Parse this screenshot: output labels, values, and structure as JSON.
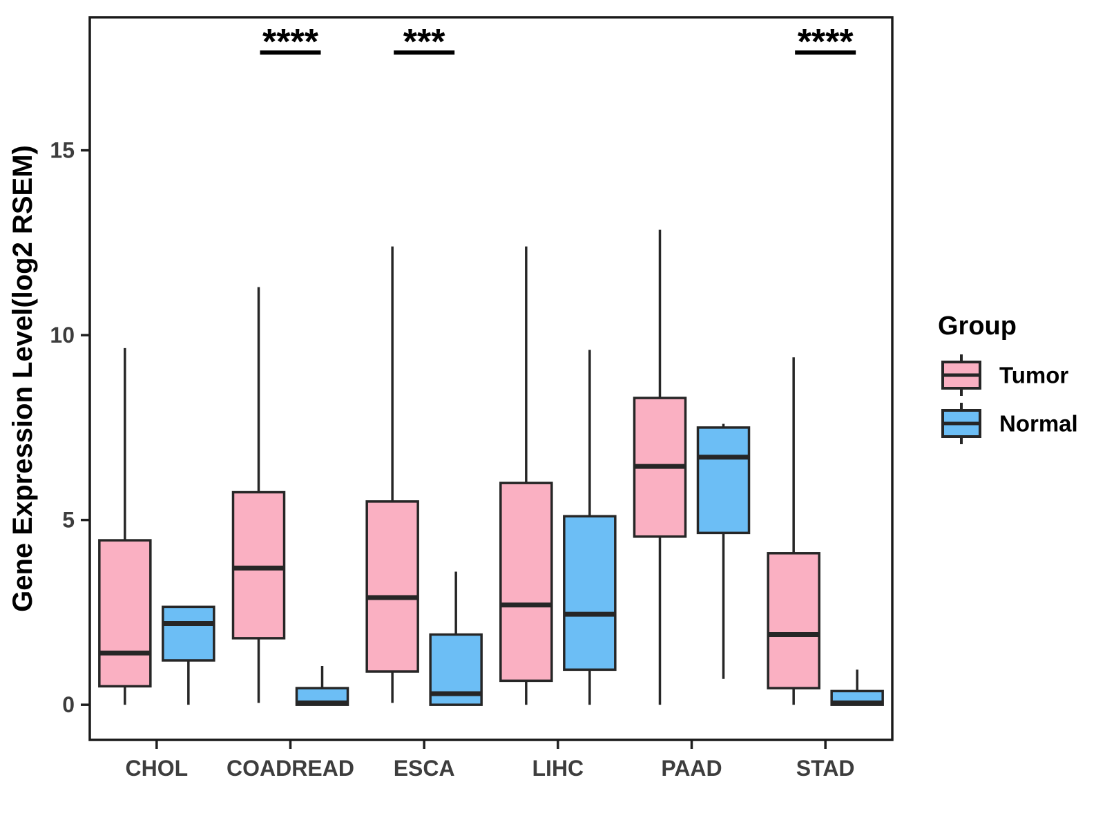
{
  "chart_data": {
    "type": "boxplot",
    "title": "",
    "xlabel": "",
    "ylabel": "Gene Expression Level(log2 RSEM)",
    "categories": [
      "CHOL",
      "COADREAD",
      "ESCA",
      "LIHC",
      "PAAD",
      "STAD"
    ],
    "y_ticks": [
      0,
      5,
      10,
      15
    ],
    "ylim": [
      -0.95,
      18.6
    ],
    "grid": "off",
    "panel_background": "#ffffff",
    "series": [
      {
        "name": "Tumor",
        "color": "#FAB0C2",
        "data": [
          {
            "category": "CHOL",
            "min": 0,
            "q1": 0.5,
            "median": 1.4,
            "q3": 4.45,
            "max": 9.65
          },
          {
            "category": "COADREAD",
            "min": 0.05,
            "q1": 1.8,
            "median": 3.7,
            "q3": 5.75,
            "max": 11.3
          },
          {
            "category": "ESCA",
            "min": 0.05,
            "q1": 0.9,
            "median": 2.9,
            "q3": 5.5,
            "max": 12.4
          },
          {
            "category": "LIHC",
            "min": 0,
            "q1": 0.65,
            "median": 2.7,
            "q3": 6.0,
            "max": 12.4
          },
          {
            "category": "PAAD",
            "min": 0,
            "q1": 4.55,
            "median": 6.45,
            "q3": 8.3,
            "max": 12.85
          },
          {
            "category": "STAD",
            "min": 0,
            "q1": 0.45,
            "median": 1.9,
            "q3": 4.1,
            "max": 9.4
          }
        ]
      },
      {
        "name": "Normal",
        "color": "#6CBEF5",
        "data": [
          {
            "category": "CHOL",
            "min": 0,
            "q1": 1.2,
            "median": 2.2,
            "q3": 2.65,
            "max": 2.65
          },
          {
            "category": "COADREAD",
            "min": 0,
            "q1": 0,
            "median": 0.05,
            "q3": 0.45,
            "max": 1.05
          },
          {
            "category": "ESCA",
            "min": 0,
            "q1": 0,
            "median": 0.3,
            "q3": 1.9,
            "max": 3.6
          },
          {
            "category": "LIHC",
            "min": 0,
            "q1": 0.95,
            "median": 2.45,
            "q3": 5.1,
            "max": 9.6
          },
          {
            "category": "PAAD",
            "min": 0.7,
            "q1": 4.65,
            "median": 6.7,
            "q3": 7.5,
            "max": 7.6
          },
          {
            "category": "STAD",
            "min": 0,
            "q1": 0,
            "median": 0.05,
            "q3": 0.37,
            "max": 0.95
          }
        ]
      }
    ],
    "significance": [
      {
        "category": "COADREAD",
        "label": "****"
      },
      {
        "category": "ESCA",
        "label": "***"
      },
      {
        "category": "STAD",
        "label": "****"
      }
    ],
    "legend": {
      "title": "Group",
      "position": "right",
      "entries": [
        {
          "label": "Tumor",
          "color": "#FAB0C2"
        },
        {
          "label": "Normal",
          "color": "#6CBEF5"
        }
      ]
    },
    "style_colors": {
      "box_border": "#262626",
      "median_line": "#262626",
      "whisker": "#262626",
      "panel_border": "#1a1a1a",
      "tick_mark": "#1f1f1f",
      "tick_label": "#3d3d3d",
      "axis_title": "#000000",
      "significance_text": "#000000"
    }
  }
}
